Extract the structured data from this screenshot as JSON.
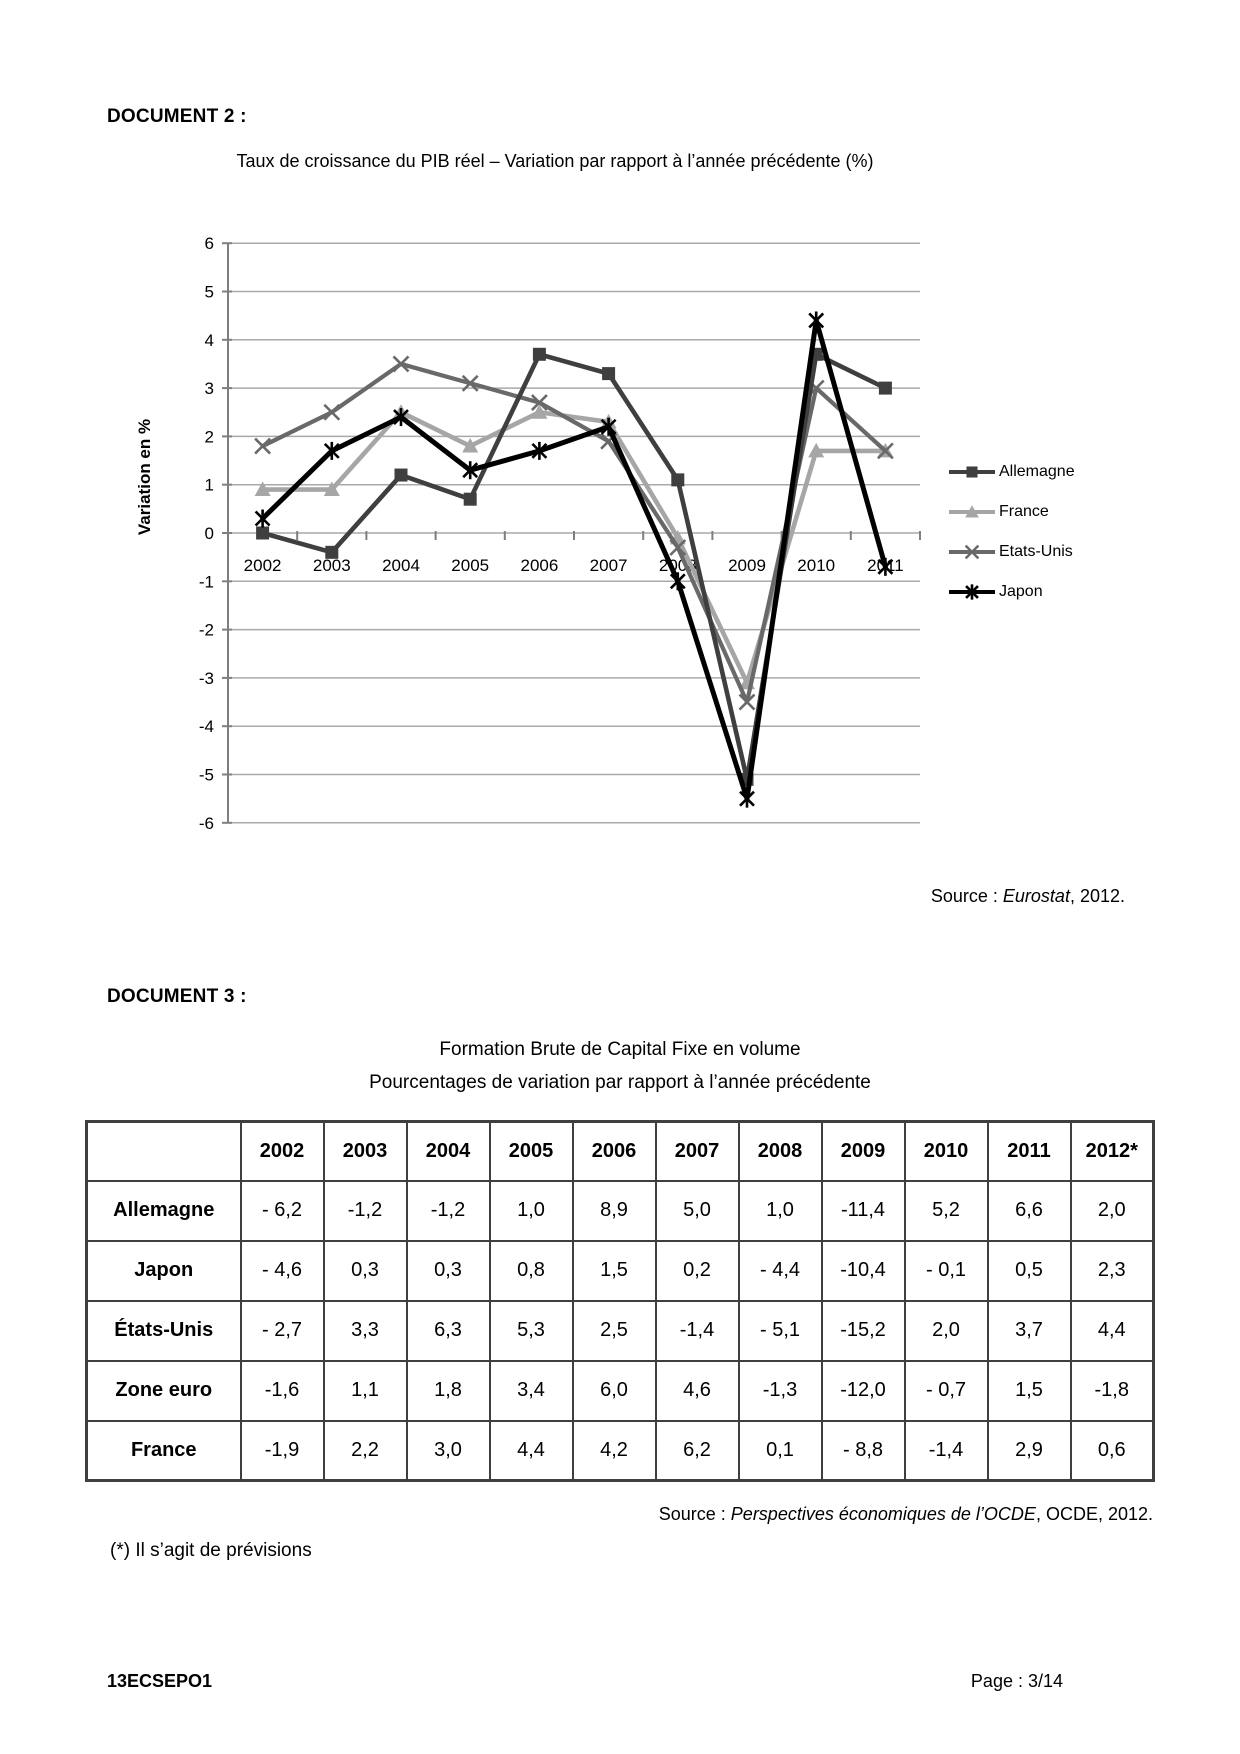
{
  "page": {
    "doc2_label": "DOCUMENT 2 :",
    "doc3_label": "DOCUMENT 3 :",
    "footnote": "(*) Il s’agit de prévisions",
    "footer_left": "13ECSEPO1",
    "footer_right": "Page : 3/14"
  },
  "chart_data": {
    "type": "line",
    "title": "Taux de croissance du PIB réel – Variation par rapport à l’année précédente (%)",
    "ylabel": "Variation en %",
    "x": [
      "2002",
      "2003",
      "2004",
      "2005",
      "2006",
      "2007",
      "2008",
      "2009",
      "2010",
      "2011"
    ],
    "ylim": [
      -6,
      6
    ],
    "ytick_step": 1,
    "grid": true,
    "legend_position": "right",
    "series": [
      {
        "name": "Allemagne",
        "color": "#3f3f3f",
        "marker": "square",
        "values": [
          0.0,
          -0.4,
          1.2,
          0.7,
          3.7,
          3.3,
          1.1,
          -5.1,
          3.7,
          3.0
        ]
      },
      {
        "name": "France",
        "color": "#a6a6a6",
        "marker": "triangle",
        "values": [
          0.9,
          0.9,
          2.5,
          1.8,
          2.5,
          2.3,
          -0.1,
          -3.1,
          1.7,
          1.7
        ]
      },
      {
        "name": "Etats-Unis",
        "color": "#696969",
        "marker": "x",
        "values": [
          1.8,
          2.5,
          3.5,
          3.1,
          2.7,
          1.9,
          -0.3,
          -3.5,
          3.0,
          1.7
        ]
      },
      {
        "name": "Japon",
        "color": "#000000",
        "marker": "star",
        "values": [
          0.3,
          1.7,
          2.4,
          1.3,
          1.7,
          2.2,
          -1.0,
          -5.5,
          4.4,
          -0.7
        ]
      }
    ],
    "source": {
      "prefix": "Source : ",
      "italic": "Eurostat",
      "suffix": ", 2012."
    }
  },
  "table": {
    "title_line1": "Formation Brute de Capital Fixe en volume",
    "title_line2": "Pourcentages de variation par rapport à l’année précédente",
    "columns": [
      "",
      "2002",
      "2003",
      "2004",
      "2005",
      "2006",
      "2007",
      "2008",
      "2009",
      "2010",
      "2011",
      "2012*"
    ],
    "rows": [
      {
        "label": "Allemagne",
        "values": [
          "- 6,2",
          "-1,2",
          "-1,2",
          "1,0",
          "8,9",
          "5,0",
          "1,0",
          "-11,4",
          "5,2",
          "6,6",
          "2,0"
        ]
      },
      {
        "label": "Japon",
        "values": [
          "- 4,6",
          "0,3",
          "0,3",
          "0,8",
          "1,5",
          "0,2",
          "- 4,4",
          "-10,4",
          "- 0,1",
          "0,5",
          "2,3"
        ]
      },
      {
        "label": "États-Unis",
        "values": [
          "- 2,7",
          "3,3",
          "6,3",
          "5,3",
          "2,5",
          "-1,4",
          "- 5,1",
          "-15,2",
          "2,0",
          "3,7",
          "4,4"
        ]
      },
      {
        "label": "Zone euro",
        "values": [
          "-1,6",
          "1,1",
          "1,8",
          "3,4",
          "6,0",
          "4,6",
          "-1,3",
          "-12,0",
          "- 0,7",
          "1,5",
          "-1,8"
        ]
      },
      {
        "label": "France",
        "values": [
          "-1,9",
          "2,2",
          "3,0",
          "4,4",
          "4,2",
          "6,2",
          "0,1",
          "- 8,8",
          "-1,4",
          "2,9",
          "0,6"
        ]
      }
    ],
    "source": {
      "prefix": "Source : ",
      "italic": "Perspectives économiques de l’OCDE",
      "suffix": ", OCDE, 2012."
    }
  }
}
